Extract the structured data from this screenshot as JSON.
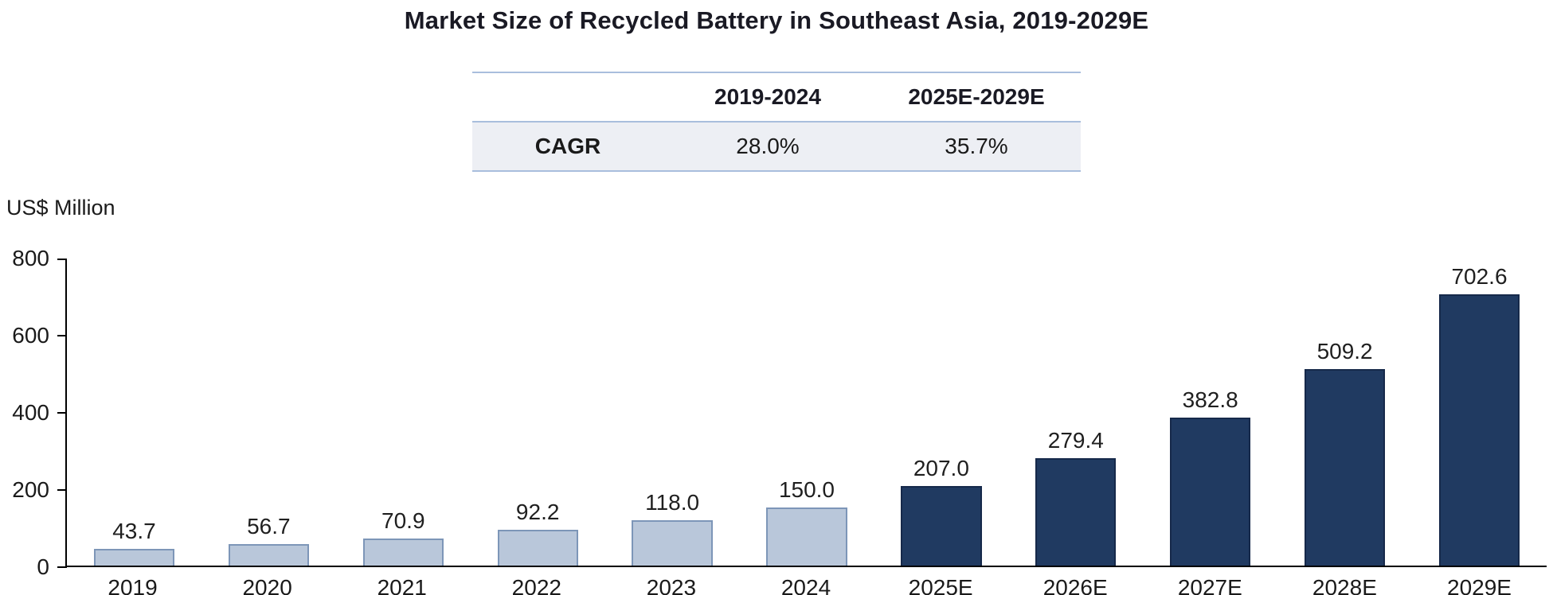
{
  "title": "Market Size of Recycled Battery in Southeast Asia, 2019-2029E",
  "cagr_table": {
    "corner": "",
    "col_headers": [
      "2019-2024",
      "2025E-2029E"
    ],
    "rows": [
      {
        "label": "CAGR",
        "values": [
          "28.0%",
          "35.7%"
        ]
      }
    ]
  },
  "chart_data": {
    "type": "bar",
    "title": "Market Size of Recycled Battery in Southeast Asia, 2019-2029E",
    "ylabel": "US$ Million",
    "xlabel": "",
    "categories": [
      "2019",
      "2020",
      "2021",
      "2022",
      "2023",
      "2024",
      "2025E",
      "2026E",
      "2027E",
      "2028E",
      "2029E"
    ],
    "values": [
      43.7,
      56.7,
      70.9,
      92.2,
      118.0,
      150.0,
      207.0,
      279.4,
      382.8,
      509.2,
      702.6
    ],
    "historical_count": 6,
    "ylim": [
      0,
      800
    ],
    "yticks": [
      0,
      200,
      400,
      600,
      800
    ],
    "grid": false,
    "legend": "none",
    "colors": {
      "historical_fill": "#b9c7da",
      "historical_border": "#7d96b8",
      "forecast_fill": "#203a61",
      "forecast_border": "#16294a",
      "axis": "#000000",
      "table_border": "#a9bedd",
      "table_row_bg": "#edeff4"
    },
    "value_label_format": "one_decimal"
  }
}
